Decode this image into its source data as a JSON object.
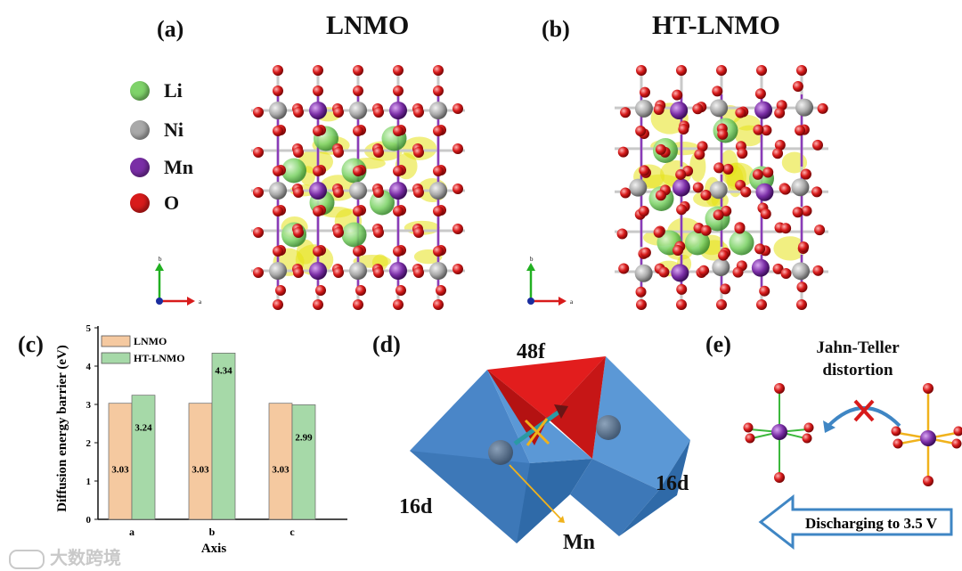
{
  "panel_labels": {
    "a": "(a)",
    "b": "(b)",
    "c": "(c)",
    "d": "(d)",
    "e": "(e)"
  },
  "titles": {
    "lnmo": "LNMO",
    "ht_lnmo": "HT-LNMO"
  },
  "legend": [
    {
      "label": "Li",
      "color": "#7fd36a"
    },
    {
      "label": "Ni",
      "color": "#a9a9a9"
    },
    {
      "label": "Mn",
      "color": "#7a2ea6"
    },
    {
      "label": "O",
      "color": "#d81b1b"
    }
  ],
  "axes_glyph": {
    "b": "b",
    "a": "a"
  },
  "chart_data": {
    "type": "bar",
    "categories": [
      "a",
      "b",
      "c"
    ],
    "series": [
      {
        "name": "LNMO",
        "values": [
          3.03,
          3.03,
          3.03
        ],
        "color": "#f5c9a0"
      },
      {
        "name": "HT-LNMO",
        "values": [
          3.24,
          4.34,
          2.99
        ],
        "color": "#a6d9a8"
      }
    ],
    "data_labels": [
      [
        "3.03",
        "3.03",
        "3.03"
      ],
      [
        "3.24",
        "4.34",
        "2.99"
      ]
    ],
    "xlabel": "Axis",
    "ylabel": "Diffusion energy barrier (eV)",
    "ylim": [
      0,
      5
    ],
    "yticks": [
      "0",
      "1",
      "2",
      "3",
      "4",
      "5"
    ],
    "legend_position": "top-left"
  },
  "panel_d": {
    "site_48f": "48f",
    "site_16d_left": "16d",
    "site_16d_right": "16d",
    "mn_label": "Mn"
  },
  "panel_e": {
    "title_line1": "Jahn-Teller",
    "title_line2": "distortion",
    "arrow_label": "Discharging to 3.5 V"
  },
  "watermark": "大数跨境"
}
